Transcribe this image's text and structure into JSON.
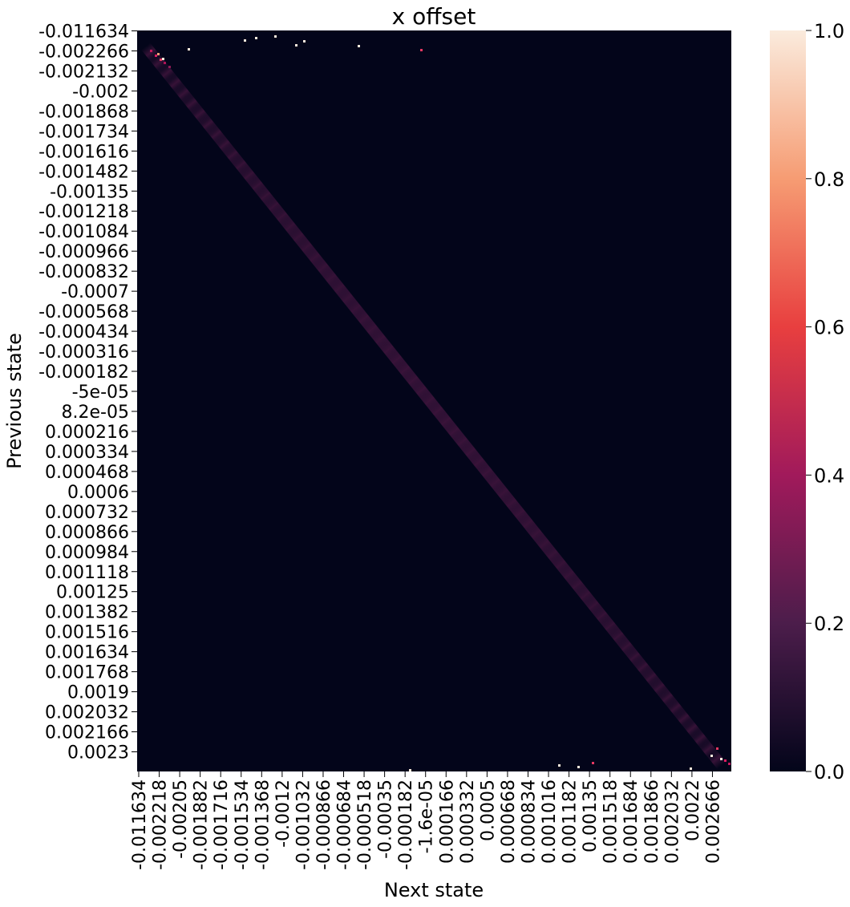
{
  "chart_data": {
    "type": "heatmap",
    "title": "x offset",
    "xlabel": "Next state",
    "ylabel": "Previous state",
    "x_tick_labels": [
      "-0.011634",
      "-0.002218",
      "-0.00205",
      "-0.001882",
      "-0.001716",
      "-0.001534",
      "-0.001368",
      "-0.0012",
      "-0.001032",
      "-0.000866",
      "-0.000684",
      "-0.000518",
      "-0.00035",
      "-0.000182",
      "-1.6e-05",
      "0.000166",
      "0.000332",
      "0.0005",
      "0.000668",
      "0.000834",
      "0.001016",
      "0.001182",
      "0.00135",
      "0.001518",
      "0.001684",
      "0.001866",
      "0.002032",
      "0.0022",
      "0.002666"
    ],
    "y_tick_labels": [
      "-0.011634",
      "-0.002266",
      "-0.002132",
      "-0.002",
      "-0.001868",
      "-0.001734",
      "-0.001616",
      "-0.001482",
      "-0.00135",
      "-0.001218",
      "-0.001084",
      "-0.000966",
      "-0.000832",
      "-0.0007",
      "-0.000568",
      "-0.000434",
      "-0.000316",
      "-0.000182",
      "-5e-05",
      "8.2e-05",
      "0.000216",
      "0.000334",
      "0.000468",
      "0.0006",
      "0.000732",
      "0.000866",
      "0.000984",
      "0.001118",
      "0.00125",
      "0.001382",
      "0.001516",
      "0.001634",
      "0.001768",
      "0.0019",
      "0.002032",
      "0.002166",
      "0.0023"
    ],
    "colorbar": {
      "ticks": [
        "0.0",
        "0.2",
        "0.4",
        "0.6",
        "0.8",
        "1.0"
      ],
      "range": [
        0,
        1
      ],
      "colors": [
        "#03051a",
        "#4c1d4b",
        "#a11a5b",
        "#e83f3f",
        "#f69c73",
        "#faebdd"
      ]
    },
    "description_values": {
      "background": 0.0,
      "diagonal_peak": 0.3,
      "corner_max": 1.0
    }
  }
}
